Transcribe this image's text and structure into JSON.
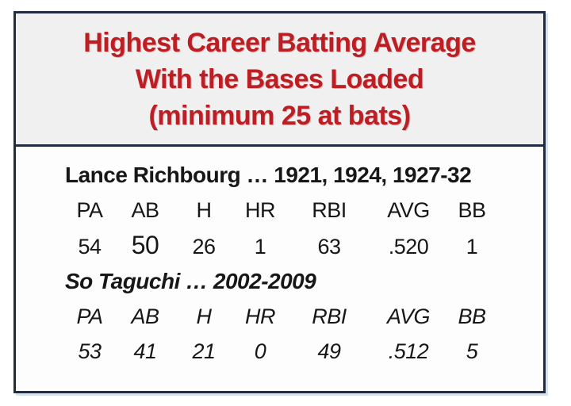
{
  "title": {
    "line1": "Highest Career Batting Average",
    "line2": "With the Bases Loaded",
    "line3": "(minimum 25 at bats)"
  },
  "colors": {
    "title_red": "#bd1e24",
    "border_navy": "#1f2c42",
    "header_bg": "#f0f0f0",
    "body_bg": "#fdfdfd",
    "text_black": "#171717",
    "shadow_blue": "#d6e2f0"
  },
  "players": [
    {
      "name_line": "Lance Richbourg … 1921, 1924, 1927-32",
      "headers": [
        "PA",
        "AB",
        "H",
        "HR",
        "RBI",
        "AVG",
        "BB"
      ],
      "values": [
        "54",
        "50",
        "26",
        "1",
        "63",
        ".520",
        "1"
      ]
    },
    {
      "name_line": "So Taguchi … 2002-2009",
      "headers": [
        "PA",
        "AB",
        "H",
        "HR",
        "RBI",
        "AVG",
        "BB"
      ],
      "values": [
        "53",
        "41",
        "21",
        "0",
        "49",
        ".512",
        "5"
      ]
    }
  ]
}
